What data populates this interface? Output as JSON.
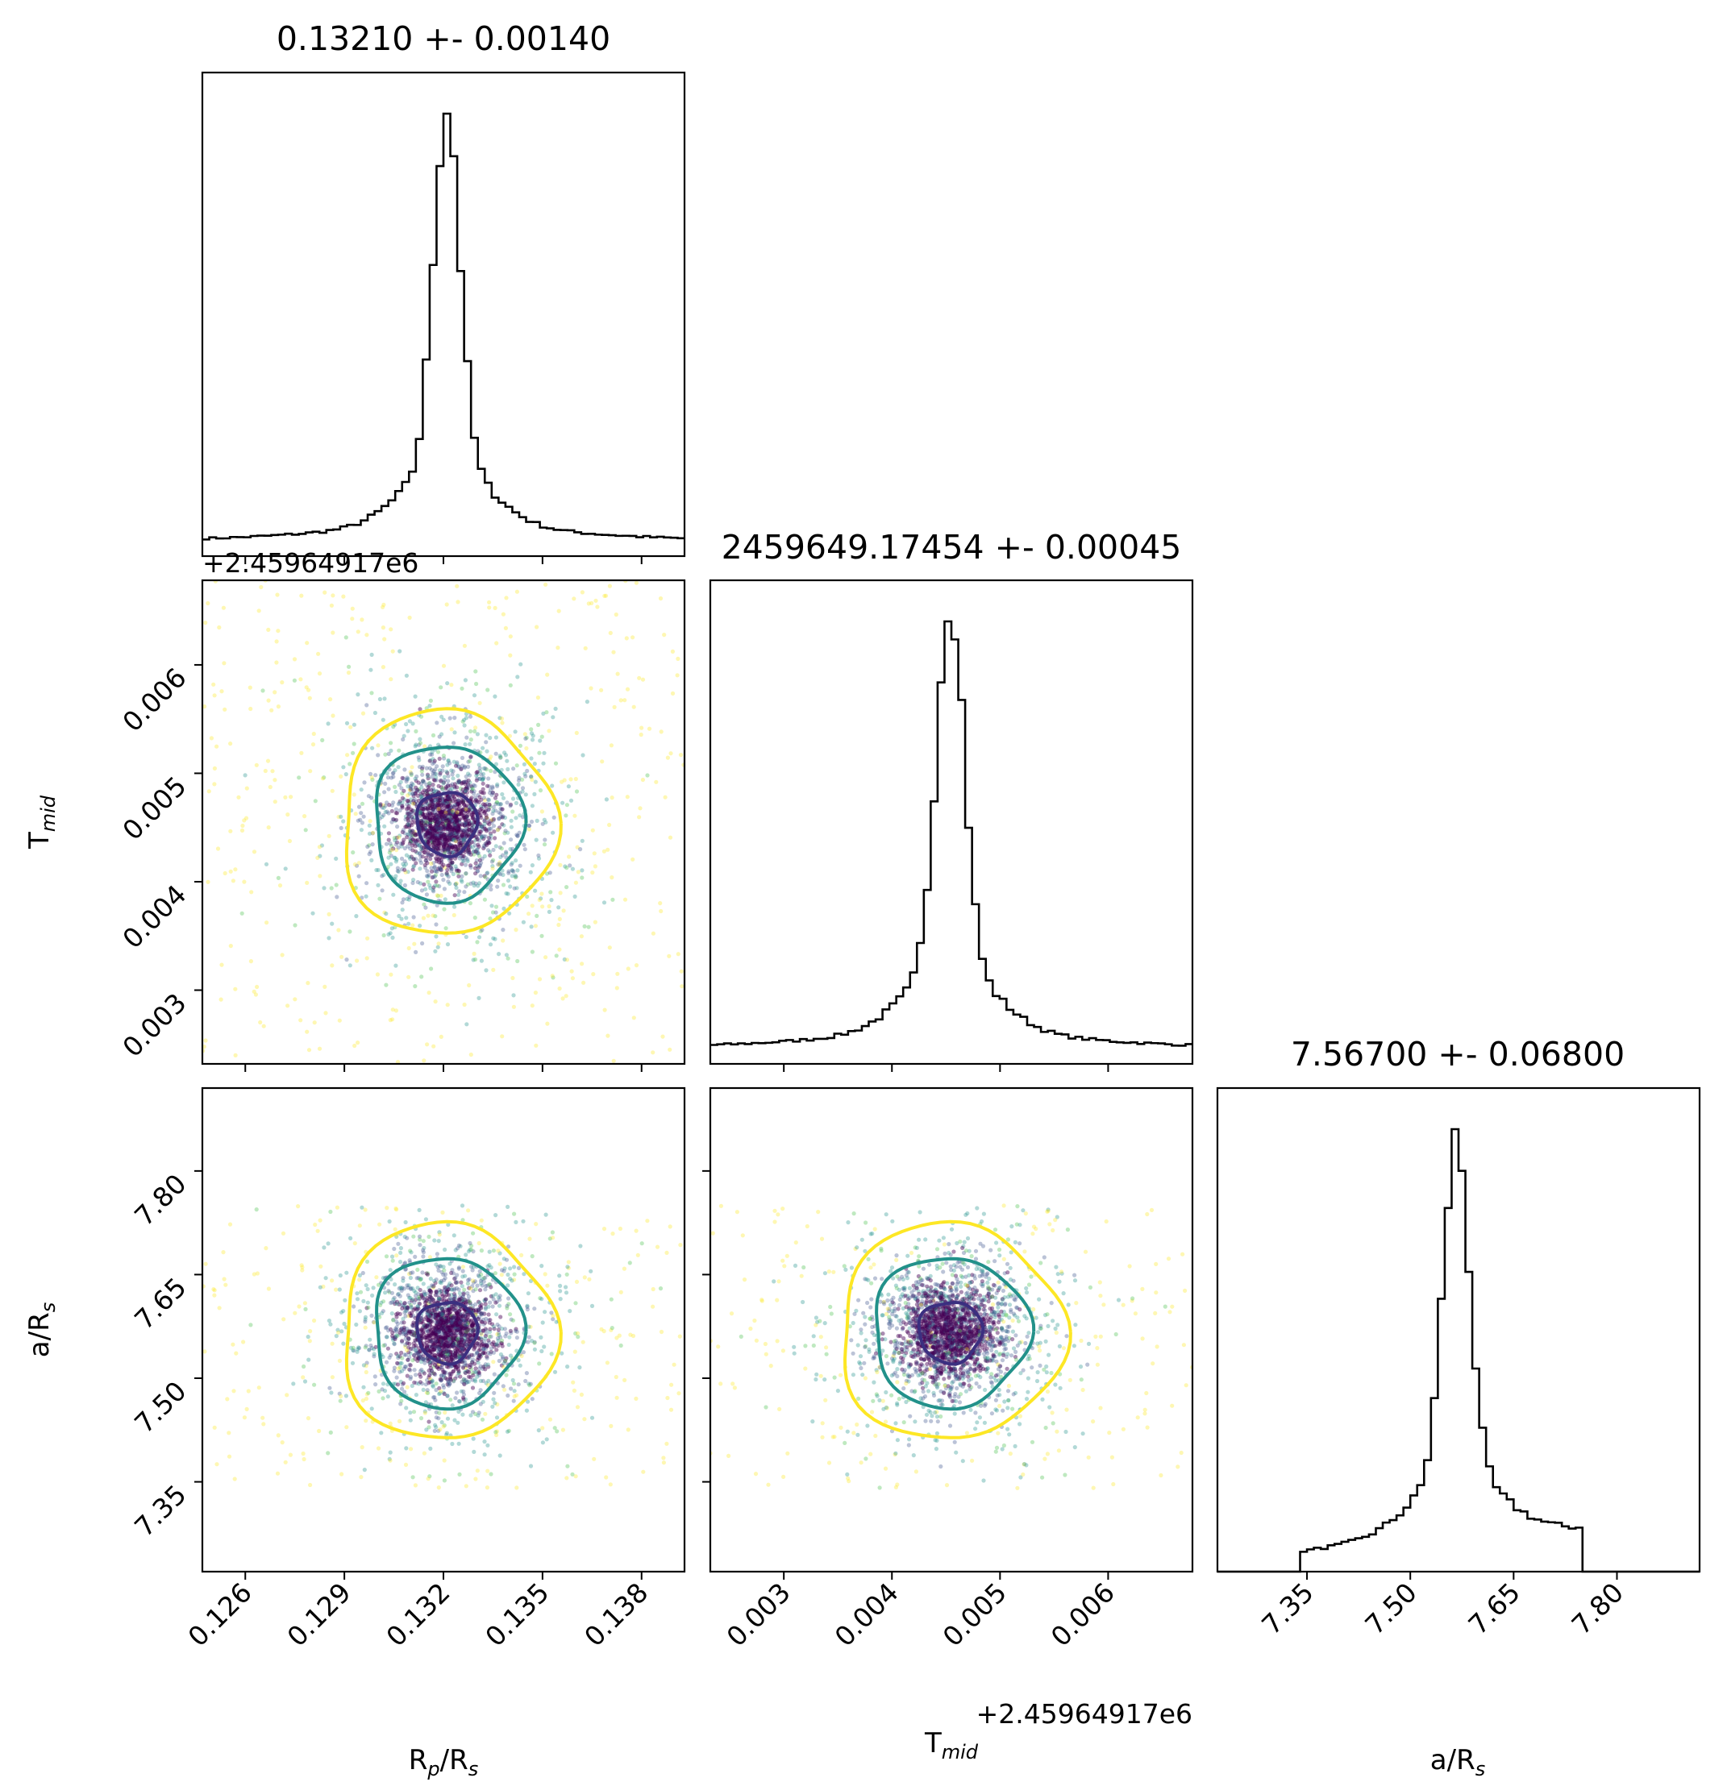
{
  "chart_data": {
    "type": "corner",
    "parameters": [
      {
        "key": "rp",
        "label_main": "R",
        "label_sub": "p",
        "label_mid": "/R",
        "label_sub2": "s",
        "range": [
          0.1247,
          0.1393
        ],
        "ticks": [
          0.126,
          0.129,
          0.132,
          0.135,
          0.138
        ],
        "tick_labels": [
          "0.126",
          "0.129",
          "0.132",
          "0.135",
          "0.138"
        ],
        "mean": 0.1321,
        "std": 0.0014,
        "title": "0.13210 +- 0.00140",
        "offset_text": ""
      },
      {
        "key": "tmid",
        "label_main": "T",
        "label_sub": "mid",
        "label_mid": "",
        "label_sub2": "",
        "range": [
          0.00232,
          0.00678
        ],
        "ticks": [
          0.003,
          0.004,
          0.005,
          0.006
        ],
        "tick_labels": [
          "0.003",
          "0.004",
          "0.005",
          "0.006"
        ],
        "mean": 0.00454,
        "std": 0.00045,
        "title": "2459649.17454 +- 0.00045",
        "offset_text": "+2.45964917e6"
      },
      {
        "key": "ars",
        "label_main": "a",
        "label_sub": "",
        "label_mid": "/R",
        "label_sub2": "s",
        "range": [
          7.22,
          7.92
        ],
        "ticks": [
          7.35,
          7.5,
          7.65,
          7.8
        ],
        "tick_labels": [
          "7.35",
          "7.50",
          "7.65",
          "7.80"
        ],
        "mean": 7.567,
        "std": 0.068,
        "title": "7.56700 +- 0.06800",
        "offset_text": ""
      }
    ],
    "hist_ars_support": [
      7.34,
      7.75
    ],
    "contour_levels": [
      {
        "level": "inner",
        "color": "#3b2f80"
      },
      {
        "level": "middle",
        "color": "#22918a"
      },
      {
        "level": "outer",
        "color": "#fde725"
      }
    ],
    "point_colors": [
      "#fde725",
      "#5ec962",
      "#21918c",
      "#3b528b",
      "#440154"
    ]
  }
}
